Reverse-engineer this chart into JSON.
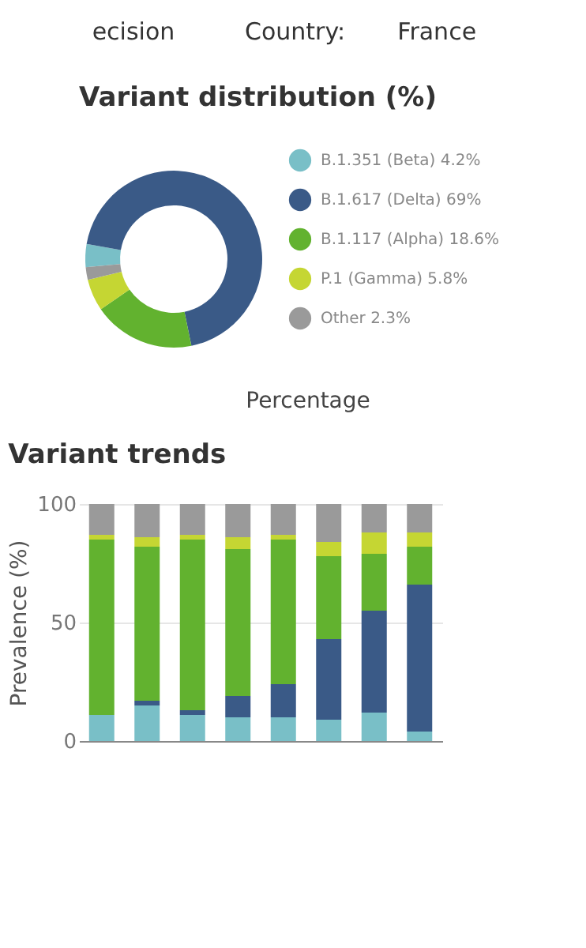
{
  "chart_data": [
    {
      "type": "other",
      "annotations": [
        "ecision",
        "Country:",
        "France"
      ]
    },
    {
      "type": "donut",
      "title": "Variant distribution (%)",
      "categories": [
        "B.1.351 (Beta)",
        "B.1.617 (Delta)",
        "B.1.117 (Alpha)",
        "P.1 (Gamma)",
        "Other"
      ],
      "values": [
        4.2,
        69,
        18.6,
        5.8,
        2.3
      ],
      "colors": [
        "#79bfc7",
        "#3a5a87",
        "#62b22f",
        "#c5d633",
        "#9a9a9a"
      ],
      "value_labels": [
        "4.2%",
        "69%",
        "18.6%",
        "5.8%",
        "2.3%"
      ],
      "legend": "right",
      "annotations": [
        "Percentage"
      ]
    },
    {
      "type": "bar",
      "stacked": true,
      "title": "Variant trends",
      "ylabel": "Prevalence (%)",
      "categories": [
        null,
        null,
        null,
        null,
        null,
        null,
        null,
        null
      ],
      "ylim": [
        0,
        100
      ],
      "yticks": [
        0,
        50,
        100
      ],
      "grid": "y",
      "tick_labels": "y",
      "series": [
        {
          "color": "#79bfc7",
          "values": [
            11,
            15,
            11,
            10,
            10,
            9,
            12,
            4
          ]
        },
        {
          "color": "#3a5a87",
          "values": [
            0,
            2,
            2,
            9,
            14,
            34,
            43,
            62
          ]
        },
        {
          "color": "#62b22f",
          "values": [
            74,
            65,
            72,
            62,
            61,
            35,
            24,
            16
          ]
        },
        {
          "color": "#c5d633",
          "values": [
            2,
            4,
            2,
            5,
            2,
            6,
            9,
            6
          ]
        },
        {
          "color": "#9a9a9a",
          "values": [
            13,
            14,
            13,
            14,
            13,
            16,
            12,
            12
          ]
        }
      ]
    }
  ]
}
